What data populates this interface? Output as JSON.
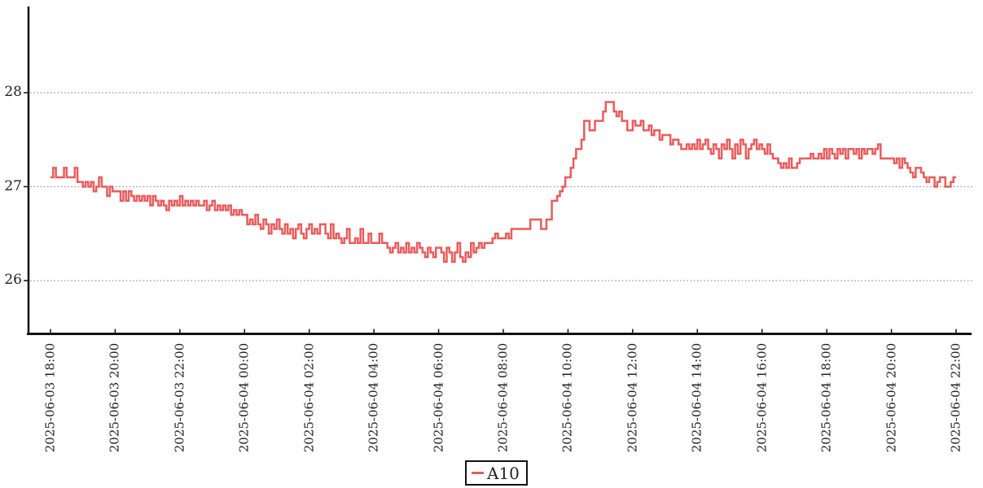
{
  "colors": {
    "series": "#e95c5c",
    "axis": "#111111",
    "grid": "#999999",
    "text": "#222222",
    "background": "#ffffff"
  },
  "chart_data": {
    "type": "line",
    "step": "after",
    "title": "",
    "xlabel": "",
    "ylabel": "",
    "grid": {
      "horizontal_dotted": true
    },
    "legend_position": "bottom-center",
    "y_ticks": [
      26,
      27,
      28
    ],
    "y_axis_range": [
      25.44,
      28.94
    ],
    "x_start": "2025-06-03 18:00",
    "x_end": "2025-06-04 22:00",
    "x_interval_minutes": 5,
    "x_tick_labels": [
      "2025-06-03 18:00",
      "2025-06-03 20:00",
      "2025-06-03 22:00",
      "2025-06-04 00:00",
      "2025-06-04 02:00",
      "2025-06-04 04:00",
      "2025-06-04 06:00",
      "2025-06-04 08:00",
      "2025-06-04 10:00",
      "2025-06-04 12:00",
      "2025-06-04 14:00",
      "2025-06-04 16:00",
      "2025-06-04 18:00",
      "2025-06-04 20:00",
      "2025-06-04 22:00"
    ],
    "series": [
      {
        "name": "A10",
        "color": "#e95c5c",
        "values": [
          27.1,
          27.2,
          27.1,
          27.1,
          27.1,
          27.2,
          27.1,
          27.1,
          27.1,
          27.2,
          27.05,
          27.05,
          27.0,
          27.05,
          27.0,
          27.05,
          26.95,
          27.0,
          27.1,
          27.0,
          27.0,
          26.9,
          27.0,
          26.95,
          26.95,
          26.95,
          26.85,
          26.95,
          26.85,
          26.95,
          26.9,
          26.85,
          26.9,
          26.85,
          26.9,
          26.85,
          26.9,
          26.8,
          26.9,
          26.85,
          26.8,
          26.85,
          26.8,
          26.75,
          26.85,
          26.8,
          26.85,
          26.8,
          26.9,
          26.8,
          26.85,
          26.8,
          26.85,
          26.8,
          26.85,
          26.8,
          26.8,
          26.85,
          26.75,
          26.8,
          26.85,
          26.75,
          26.8,
          26.75,
          26.8,
          26.75,
          26.8,
          26.7,
          26.75,
          26.7,
          26.75,
          26.7,
          26.7,
          26.6,
          26.65,
          26.6,
          26.7,
          26.6,
          26.55,
          26.65,
          26.6,
          26.5,
          26.6,
          26.55,
          26.65,
          26.55,
          26.5,
          26.6,
          26.5,
          26.55,
          26.45,
          26.55,
          26.6,
          26.5,
          26.45,
          26.55,
          26.6,
          26.5,
          26.55,
          26.5,
          26.6,
          26.6,
          26.5,
          26.45,
          26.6,
          26.45,
          26.5,
          26.45,
          26.4,
          26.45,
          26.55,
          26.4,
          26.4,
          26.45,
          26.4,
          26.55,
          26.4,
          26.4,
          26.5,
          26.4,
          26.4,
          26.4,
          26.5,
          26.4,
          26.4,
          26.35,
          26.3,
          26.35,
          26.4,
          26.3,
          26.35,
          26.3,
          26.4,
          26.3,
          26.35,
          26.3,
          26.4,
          26.35,
          26.3,
          26.25,
          26.35,
          26.3,
          26.25,
          26.35,
          26.35,
          26.3,
          26.2,
          26.35,
          26.3,
          26.2,
          26.3,
          26.4,
          26.25,
          26.2,
          26.3,
          26.25,
          26.4,
          26.3,
          26.35,
          26.4,
          26.35,
          26.4,
          26.4,
          26.4,
          26.45,
          26.5,
          26.45,
          26.45,
          26.45,
          26.5,
          26.45,
          26.55,
          26.55,
          26.55,
          26.55,
          26.55,
          26.55,
          26.55,
          26.65,
          26.65,
          26.65,
          26.65,
          26.55,
          26.55,
          26.65,
          26.65,
          26.85,
          26.85,
          26.9,
          26.95,
          27.0,
          27.1,
          27.1,
          27.2,
          27.3,
          27.4,
          27.4,
          27.5,
          27.7,
          27.7,
          27.6,
          27.6,
          27.7,
          27.7,
          27.7,
          27.8,
          27.9,
          27.9,
          27.9,
          27.8,
          27.75,
          27.8,
          27.7,
          27.7,
          27.6,
          27.6,
          27.7,
          27.65,
          27.65,
          27.7,
          27.6,
          27.6,
          27.65,
          27.55,
          27.6,
          27.6,
          27.5,
          27.55,
          27.55,
          27.55,
          27.45,
          27.5,
          27.5,
          27.45,
          27.4,
          27.4,
          27.45,
          27.4,
          27.45,
          27.4,
          27.5,
          27.4,
          27.45,
          27.5,
          27.4,
          27.35,
          27.45,
          27.4,
          27.3,
          27.45,
          27.4,
          27.5,
          27.4,
          27.3,
          27.45,
          27.35,
          27.5,
          27.45,
          27.3,
          27.4,
          27.45,
          27.5,
          27.4,
          27.45,
          27.4,
          27.35,
          27.45,
          27.35,
          27.3,
          27.3,
          27.25,
          27.2,
          27.25,
          27.2,
          27.3,
          27.2,
          27.2,
          27.25,
          27.3,
          27.3,
          27.3,
          27.3,
          27.35,
          27.3,
          27.3,
          27.35,
          27.3,
          27.4,
          27.3,
          27.4,
          27.35,
          27.3,
          27.4,
          27.35,
          27.4,
          27.3,
          27.4,
          27.4,
          27.35,
          27.4,
          27.3,
          27.4,
          27.35,
          27.4,
          27.4,
          27.35,
          27.4,
          27.45,
          27.3,
          27.3,
          27.3,
          27.3,
          27.3,
          27.25,
          27.3,
          27.2,
          27.3,
          27.25,
          27.2,
          27.15,
          27.1,
          27.2,
          27.2,
          27.15,
          27.1,
          27.05,
          27.1,
          27.1,
          27.0,
          27.05,
          27.1,
          27.1,
          27.0,
          27.0,
          27.05,
          27.1,
          27.1
        ]
      }
    ]
  },
  "legend": {
    "label": "A10"
  }
}
